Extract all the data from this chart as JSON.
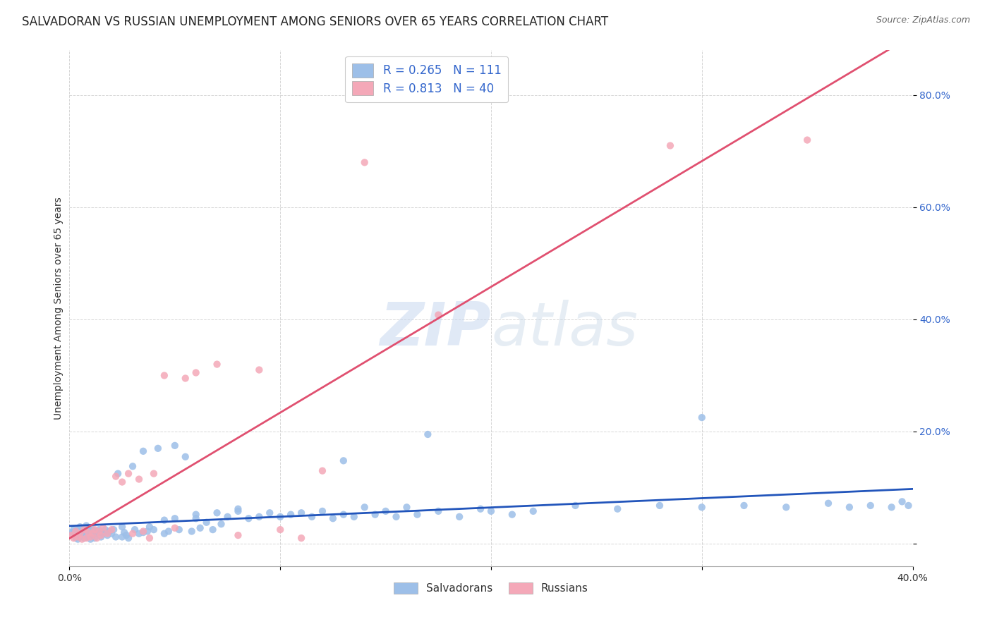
{
  "title": "SALVADORAN VS RUSSIAN UNEMPLOYMENT AMONG SENIORS OVER 65 YEARS CORRELATION CHART",
  "source": "Source: ZipAtlas.com",
  "ylabel": "Unemployment Among Seniors over 65 years",
  "xlim": [
    0.0,
    0.4
  ],
  "ylim": [
    -0.04,
    0.88
  ],
  "yticks": [
    0.0,
    0.2,
    0.4,
    0.6,
    0.8
  ],
  "xticks": [
    0.0,
    0.1,
    0.2,
    0.3,
    0.4
  ],
  "xtick_labels_show": [
    "0.0%",
    "40.0%"
  ],
  "watermark_zip": "ZIP",
  "watermark_atlas": "atlas",
  "legend_salvadoran_R": "0.265",
  "legend_salvadoran_N": "111",
  "legend_russian_R": "0.813",
  "legend_russian_N": "40",
  "salvadoran_color": "#9dbfe8",
  "russian_color": "#f4a8b8",
  "salvadoran_line_color": "#2255bb",
  "russian_line_color": "#e05070",
  "salvadoran_points_x": [
    0.001,
    0.002,
    0.002,
    0.003,
    0.003,
    0.003,
    0.004,
    0.004,
    0.004,
    0.005,
    0.005,
    0.005,
    0.006,
    0.006,
    0.007,
    0.007,
    0.007,
    0.008,
    0.008,
    0.008,
    0.009,
    0.009,
    0.01,
    0.01,
    0.01,
    0.011,
    0.011,
    0.012,
    0.012,
    0.013,
    0.014,
    0.015,
    0.015,
    0.016,
    0.017,
    0.018,
    0.019,
    0.02,
    0.021,
    0.022,
    0.023,
    0.025,
    0.026,
    0.027,
    0.028,
    0.03,
    0.031,
    0.033,
    0.035,
    0.037,
    0.038,
    0.04,
    0.042,
    0.045,
    0.047,
    0.05,
    0.052,
    0.055,
    0.058,
    0.06,
    0.062,
    0.065,
    0.068,
    0.07,
    0.072,
    0.075,
    0.08,
    0.085,
    0.09,
    0.095,
    0.1,
    0.105,
    0.11,
    0.115,
    0.12,
    0.125,
    0.13,
    0.135,
    0.14,
    0.145,
    0.15,
    0.155,
    0.16,
    0.165,
    0.175,
    0.185,
    0.195,
    0.2,
    0.21,
    0.22,
    0.24,
    0.26,
    0.28,
    0.3,
    0.32,
    0.34,
    0.36,
    0.37,
    0.38,
    0.39,
    0.395,
    0.398,
    0.3,
    0.17,
    0.05,
    0.13,
    0.045,
    0.06,
    0.08,
    0.035,
    0.025
  ],
  "salvadoran_points_y": [
    0.02,
    0.018,
    0.025,
    0.01,
    0.022,
    0.015,
    0.008,
    0.018,
    0.025,
    0.012,
    0.02,
    0.03,
    0.015,
    0.022,
    0.01,
    0.018,
    0.028,
    0.012,
    0.022,
    0.032,
    0.015,
    0.025,
    0.008,
    0.018,
    0.028,
    0.015,
    0.025,
    0.01,
    0.022,
    0.018,
    0.025,
    0.012,
    0.02,
    0.018,
    0.025,
    0.015,
    0.022,
    0.018,
    0.025,
    0.012,
    0.125,
    0.03,
    0.02,
    0.015,
    0.01,
    0.138,
    0.025,
    0.018,
    0.165,
    0.022,
    0.03,
    0.025,
    0.17,
    0.018,
    0.022,
    0.175,
    0.025,
    0.155,
    0.022,
    0.045,
    0.028,
    0.038,
    0.025,
    0.055,
    0.035,
    0.048,
    0.058,
    0.045,
    0.048,
    0.055,
    0.048,
    0.052,
    0.055,
    0.048,
    0.058,
    0.045,
    0.052,
    0.048,
    0.065,
    0.052,
    0.058,
    0.048,
    0.065,
    0.052,
    0.058,
    0.048,
    0.062,
    0.058,
    0.052,
    0.058,
    0.068,
    0.062,
    0.068,
    0.065,
    0.068,
    0.065,
    0.072,
    0.065,
    0.068,
    0.065,
    0.075,
    0.068,
    0.225,
    0.195,
    0.045,
    0.148,
    0.042,
    0.052,
    0.062,
    0.02,
    0.012
  ],
  "russian_points_x": [
    0.001,
    0.002,
    0.003,
    0.004,
    0.005,
    0.006,
    0.007,
    0.008,
    0.009,
    0.01,
    0.011,
    0.012,
    0.013,
    0.014,
    0.015,
    0.016,
    0.018,
    0.02,
    0.022,
    0.025,
    0.028,
    0.03,
    0.033,
    0.035,
    0.038,
    0.04,
    0.045,
    0.05,
    0.055,
    0.06,
    0.07,
    0.08,
    0.09,
    0.1,
    0.11,
    0.12,
    0.14,
    0.175,
    0.285,
    0.35
  ],
  "russian_points_y": [
    0.015,
    0.01,
    0.022,
    0.012,
    0.018,
    0.008,
    0.025,
    0.01,
    0.02,
    0.012,
    0.018,
    0.025,
    0.01,
    0.022,
    0.015,
    0.028,
    0.018,
    0.025,
    0.12,
    0.11,
    0.125,
    0.018,
    0.115,
    0.022,
    0.01,
    0.125,
    0.3,
    0.028,
    0.295,
    0.305,
    0.32,
    0.015,
    0.31,
    0.025,
    0.01,
    0.13,
    0.68,
    0.408,
    0.71,
    0.72
  ],
  "background_color": "#ffffff",
  "grid_color": "#cccccc",
  "title_fontsize": 12,
  "axis_label_fontsize": 10,
  "tick_fontsize": 10,
  "legend_fontsize": 12
}
